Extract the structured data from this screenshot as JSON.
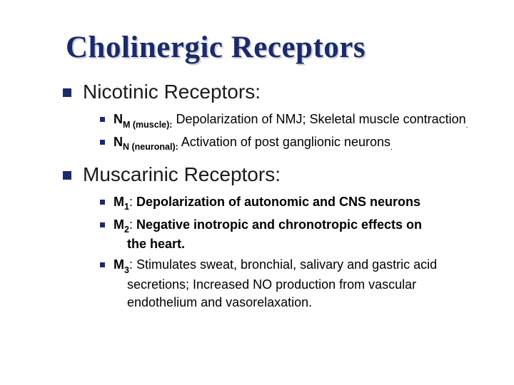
{
  "title": "Cholinergic Receptors",
  "colors": {
    "accent": "#1a2a6c",
    "text": "#000000",
    "background": "#ffffff",
    "shadow": "rgba(170,170,190,0.55)"
  },
  "typography": {
    "title_font": "Georgia",
    "body_font": "Verdana",
    "title_size_pt": 32,
    "heading_size_pt": 21,
    "body_size_pt": 13.5
  },
  "sections": [
    {
      "heading": "Nicotinic Receptors:",
      "items": [
        {
          "label_main": "N",
          "label_sub": "M (muscle):",
          "desc": " Depolarization of NMJ; Skeletal muscle contraction",
          "trailing_period": "."
        },
        {
          "label_main": "N",
          "label_sub": "N (neuronal):",
          "desc": " Activation of post ganglionic neurons",
          "trailing_period": "."
        }
      ]
    },
    {
      "heading": "Muscarinic Receptors:",
      "items": [
        {
          "label_main": "M",
          "label_sub": "1",
          "colon": ": ",
          "desc": "Depolarization of autonomic and CNS neurons"
        },
        {
          "label_main": "M",
          "label_sub": "2",
          "colon": ": ",
          "desc": "Negative inotropic and chronotropic effects on",
          "desc_cont": "the heart."
        },
        {
          "label_main": "M",
          "label_sub": "3",
          "colon": ": ",
          "desc": "Stimulates sweat, bronchial, salivary and gastric acid",
          "desc_cont": "secretions; Increased NO production from vascular",
          "desc_cont2": "endothelium and vasorelaxation."
        }
      ]
    }
  ]
}
